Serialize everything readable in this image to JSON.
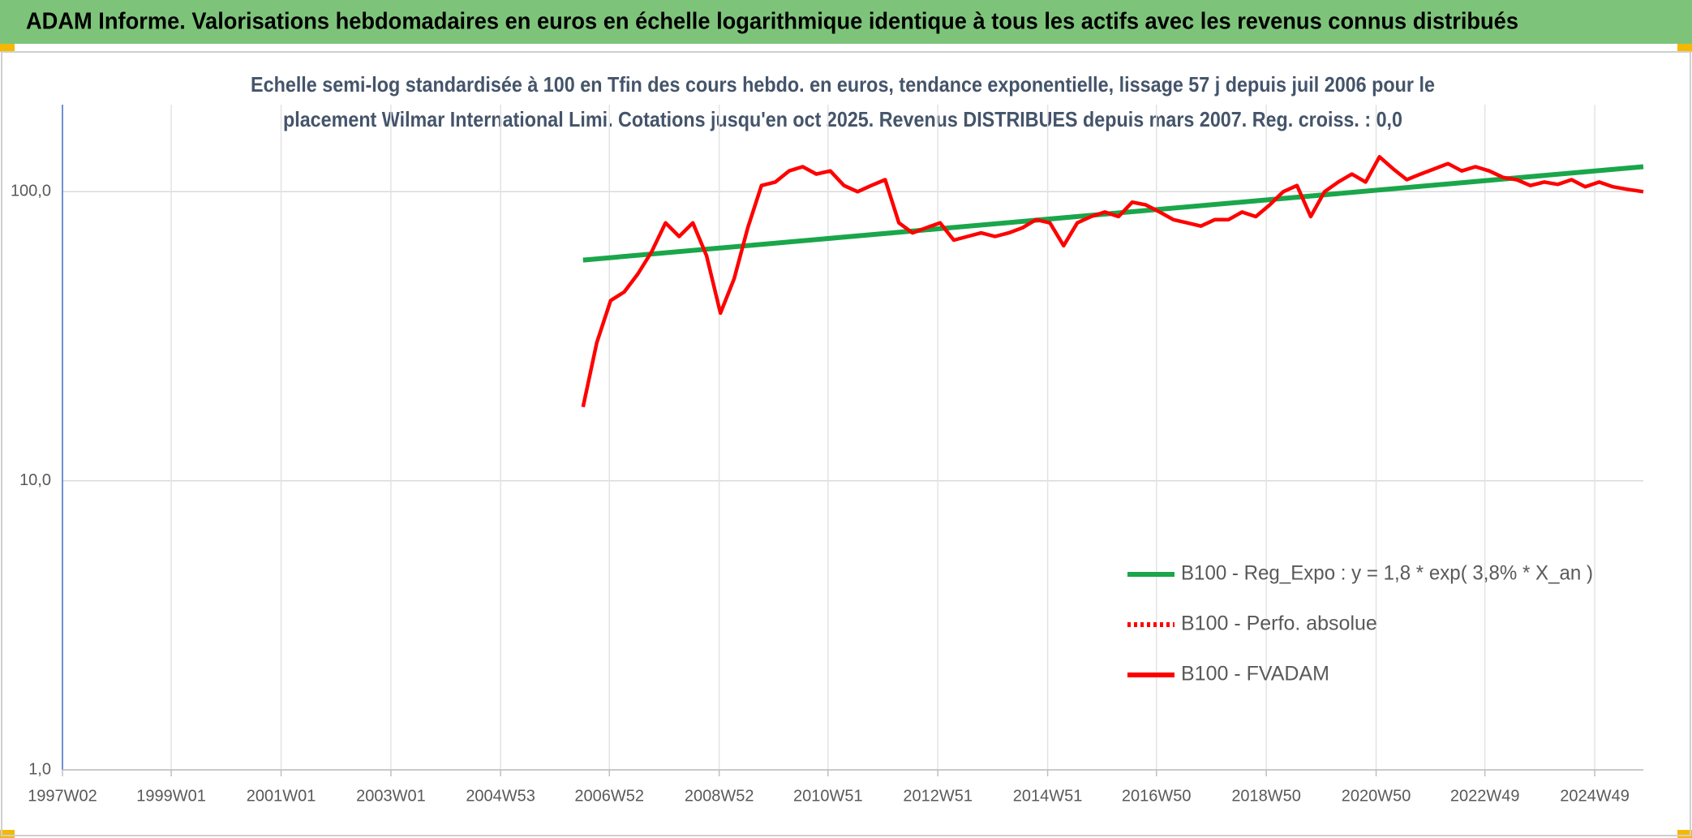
{
  "chart_data": {
    "type": "line",
    "title": "ADAM Informe. Valorisations hebdomadaires en euros en échelle logarithmique identique à tous les actifs avec les revenus connus distribués",
    "subtitle": [
      "Echelle semi-log standardisée à 100 en Tfin des cours hebdo. en euros, tendance exponentielle, lissage 57 j depuis juil 2006 pour le",
      "placement Wilmar International Limi. Cotations jusqu'en oct 2025. Revenus DISTRIBUES depuis mars 2007. Reg. croiss. : 0,0"
    ],
    "log_scale": true,
    "grid": true,
    "legend_position": "lower right",
    "ylim": [
      1,
      200
    ],
    "yticks": [
      {
        "value": 1,
        "label": "1,0"
      },
      {
        "value": 10,
        "label": "10,0"
      },
      {
        "value": 100,
        "label": "100,0"
      }
    ],
    "xlim": [
      "1997W02",
      "2025W43"
    ],
    "xticks": [
      "1997W02",
      "1999W01",
      "2001W01",
      "2003W01",
      "2004W53",
      "2006W52",
      "2008W52",
      "2010W51",
      "2012W51",
      "2014W51",
      "2016W50",
      "2018W50",
      "2020W50",
      "2022W49",
      "2024W49"
    ],
    "x": [
      "2006W27",
      "2006W40",
      "2007W01",
      "2007W14",
      "2007W27",
      "2007W40",
      "2008W01",
      "2008W14",
      "2008W27",
      "2008W40",
      "2009W01",
      "2009W14",
      "2009W27",
      "2009W40",
      "2010W01",
      "2010W14",
      "2010W27",
      "2010W40",
      "2011W01",
      "2011W14",
      "2011W27",
      "2011W40",
      "2012W01",
      "2012W14",
      "2012W27",
      "2012W40",
      "2013W01",
      "2013W14",
      "2013W27",
      "2013W40",
      "2014W01",
      "2014W14",
      "2014W27",
      "2014W40",
      "2015W01",
      "2015W14",
      "2015W27",
      "2015W40",
      "2016W01",
      "2016W14",
      "2016W27",
      "2016W40",
      "2017W01",
      "2017W14",
      "2017W27",
      "2017W40",
      "2018W01",
      "2018W14",
      "2018W27",
      "2018W40",
      "2019W01",
      "2019W14",
      "2019W27",
      "2019W40",
      "2020W01",
      "2020W14",
      "2020W27",
      "2020W40",
      "2021W01",
      "2021W14",
      "2021W27",
      "2021W40",
      "2022W01",
      "2022W14",
      "2022W27",
      "2022W40",
      "2023W01",
      "2023W14",
      "2023W27",
      "2023W40",
      "2024W01",
      "2024W14",
      "2024W27",
      "2024W40",
      "2025W01",
      "2025W14",
      "2025W27",
      "2025W43"
    ],
    "series": [
      {
        "name": "B100 - Reg_Expo : y = 1,8 * exp( 3,8% *  X_an )",
        "color": "#1aa64a",
        "style": "solid",
        "x": [
          "2006W27",
          "2025W43"
        ],
        "values": [
          58,
          122
        ]
      },
      {
        "name": "B100 - Perfo. absolue",
        "color": "#ff0000",
        "style": "dotted",
        "values": [
          null,
          null,
          null,
          null,
          null,
          null,
          null,
          null,
          null,
          null,
          null,
          null,
          null,
          null,
          null,
          null,
          null,
          null,
          null,
          null,
          null,
          null,
          null,
          null,
          null,
          null,
          null,
          null,
          null,
          null,
          null,
          null,
          null,
          null,
          null,
          null,
          null,
          null,
          null,
          null,
          null,
          null,
          null,
          null,
          null,
          null,
          null,
          null,
          null,
          null,
          null,
          null,
          null,
          null,
          null,
          null,
          null,
          null,
          null,
          null,
          null,
          null,
          null,
          null,
          null,
          null,
          null,
          null,
          null,
          null,
          null,
          null,
          null,
          null,
          null,
          null,
          null,
          null
        ]
      },
      {
        "name": "B100 - FVADAM",
        "color": "#ff0000",
        "style": "solid",
        "values": [
          18,
          30,
          42,
          45,
          52,
          62,
          78,
          70,
          78,
          60,
          38,
          50,
          75,
          105,
          108,
          118,
          122,
          115,
          118,
          105,
          100,
          105,
          110,
          78,
          72,
          75,
          78,
          68,
          70,
          72,
          70,
          72,
          75,
          80,
          78,
          65,
          78,
          82,
          85,
          82,
          92,
          90,
          85,
          80,
          78,
          76,
          80,
          80,
          85,
          82,
          90,
          100,
          105,
          82,
          100,
          108,
          115,
          108,
          132,
          120,
          110,
          115,
          120,
          125,
          118,
          122,
          118,
          112,
          110,
          105,
          108,
          106,
          110,
          104,
          108,
          104,
          102,
          100
        ]
      }
    ]
  }
}
